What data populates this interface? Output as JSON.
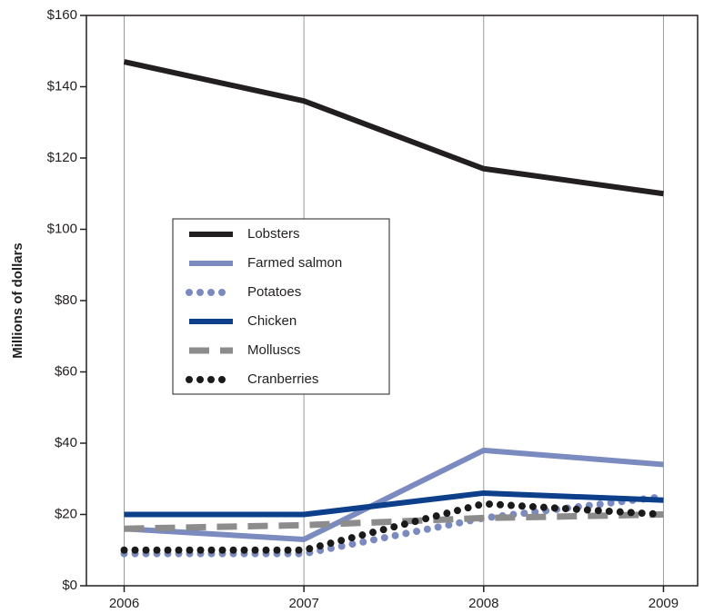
{
  "chart_data": {
    "type": "line",
    "y_label": "Millions of dollars",
    "x": [
      2006,
      2007,
      2008,
      2009
    ],
    "xlim": [
      2005.79,
      2009.19
    ],
    "xticks": [
      2006,
      2007,
      2008,
      2009
    ],
    "ylim": [
      0,
      160
    ],
    "yticks": [
      {
        "value": 0,
        "label": "$0"
      },
      {
        "value": 20,
        "label": "$20"
      },
      {
        "value": 40,
        "label": "$40"
      },
      {
        "value": 60,
        "label": "$60"
      },
      {
        "value": 80,
        "label": "$80"
      },
      {
        "value": 100,
        "label": "$100"
      },
      {
        "value": 120,
        "label": "$120"
      },
      {
        "value": 140,
        "label": "$140"
      },
      {
        "value": 160,
        "label": "$160"
      }
    ],
    "grid": true,
    "series": [
      {
        "name": "Lobsters",
        "color": "#231f20",
        "dash": "solid",
        "values": [
          147,
          136,
          117,
          110
        ]
      },
      {
        "name": "Farmed salmon",
        "color": "#7b8bbf",
        "dash": "solid",
        "values": [
          16,
          13,
          38,
          34
        ]
      },
      {
        "name": "Potatoes",
        "color": "#7b8bbf",
        "dash": "dotted",
        "values": [
          9,
          9,
          19,
          25
        ]
      },
      {
        "name": "Chicken",
        "color": "#0d3f8a",
        "dash": "solid",
        "values": [
          20,
          20,
          26,
          24
        ]
      },
      {
        "name": "Molluscs",
        "color": "#8c8c8c",
        "dash": "dashed",
        "values": [
          16,
          17,
          19,
          20
        ]
      },
      {
        "name": "Cranberries",
        "color": "#1a1a1a",
        "dash": "dotted",
        "values": [
          10,
          10,
          23,
          20
        ]
      }
    ]
  }
}
